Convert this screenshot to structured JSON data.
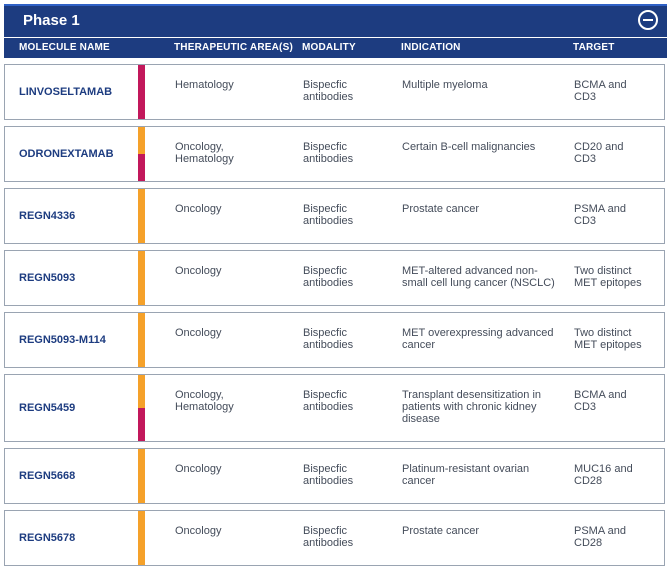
{
  "section": {
    "title": "Phase 1",
    "toggle_icon": "minus-circle-icon"
  },
  "columns": [
    "MOLECULE NAME",
    "THERAPEUTIC AREA(S)",
    "MODALITY",
    "INDICATION",
    "TARGET"
  ],
  "colors": {
    "header": "#1d3c80",
    "oncology": "#f5a12a",
    "hematology": "#c2185b"
  },
  "rows": [
    {
      "name": "LINVOSELTAMAB",
      "area": "Hematology",
      "modality": "Bispecfic\nantibodies",
      "indication": "Multiple myeloma",
      "target": "BCMA and\nCD3",
      "bar": [
        "hematology"
      ]
    },
    {
      "name": "ODRONEXTAMAB",
      "area": "Oncology,\nHematology",
      "modality": "Bispecfic\nantibodies",
      "indication": "Certain B-cell malignancies",
      "target": "CD20 and\nCD3",
      "bar": [
        "oncology",
        "hematology"
      ]
    },
    {
      "name": "REGN4336",
      "area": "Oncology",
      "modality": "Bispecfic\nantibodies",
      "indication": "Prostate cancer",
      "target": "PSMA and\nCD3",
      "bar": [
        "oncology"
      ]
    },
    {
      "name": "REGN5093",
      "area": "Oncology",
      "modality": "Bispecfic\nantibodies",
      "indication": "MET-altered advanced non-\nsmall cell lung cancer (NSCLC)",
      "target": "Two distinct\nMET epitopes",
      "bar": [
        "oncology"
      ]
    },
    {
      "name": "REGN5093-M114",
      "area": "Oncology",
      "modality": "Bispecfic\nantibodies",
      "indication": "MET overexpressing advanced\ncancer",
      "target": "Two distinct\nMET epitopes",
      "bar": [
        "oncology"
      ]
    },
    {
      "name": "REGN5459",
      "area": "Oncology,\nHematology",
      "modality": "Bispecfic\nantibodies",
      "indication": "Transplant desensitization in\npatients with chronic kidney\ndisease",
      "target": "BCMA and\nCD3",
      "bar": [
        "oncology",
        "hematology"
      ]
    },
    {
      "name": "REGN5668",
      "area": "Oncology",
      "modality": "Bispecfic\nantibodies",
      "indication": "Platinum-resistant ovarian\ncancer",
      "target": "MUC16 and\nCD28",
      "bar": [
        "oncology"
      ]
    },
    {
      "name": "REGN5678",
      "area": "Oncology",
      "modality": "Bispecfic\nantibodies",
      "indication": "Prostate cancer",
      "target": "PSMA and\nCD28",
      "bar": [
        "oncology"
      ]
    }
  ]
}
